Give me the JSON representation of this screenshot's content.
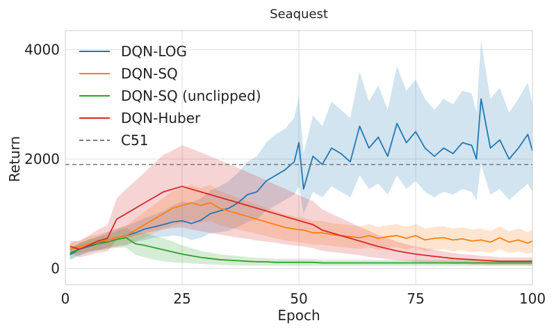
{
  "chart_data": {
    "type": "line",
    "title": "Seaquest",
    "xlabel": "Epoch",
    "ylabel": "Return",
    "xlim": [
      0,
      100
    ],
    "ylim": [
      -300,
      4350
    ],
    "xticks": [
      0,
      25,
      50,
      75,
      100
    ],
    "xtick_labels": [
      "0",
      "25",
      "50",
      "75",
      "100"
    ],
    "yticks": [
      0,
      2000,
      4000
    ],
    "ytick_labels": [
      "0",
      "2000",
      "4000"
    ],
    "grid": true,
    "legend_position": "top-left",
    "reference_line": {
      "name": "C51",
      "y": 1900,
      "color": "#808080",
      "style": "dashed"
    },
    "series": [
      {
        "name": "DQN-LOG",
        "color": "#1f77b4",
        "x": [
          1,
          3,
          5,
          7,
          9,
          11,
          13,
          15,
          17,
          19,
          21,
          23,
          25,
          27,
          29,
          31,
          33,
          35,
          37,
          39,
          41,
          43,
          45,
          47,
          49,
          50,
          51,
          53,
          55,
          57,
          59,
          61,
          63,
          65,
          67,
          69,
          71,
          73,
          75,
          77,
          79,
          81,
          83,
          85,
          87,
          88,
          89,
          91,
          93,
          95,
          97,
          99,
          100
        ],
        "values": [
          250,
          350,
          400,
          450,
          520,
          560,
          600,
          650,
          720,
          760,
          800,
          850,
          870,
          820,
          880,
          1000,
          1050,
          1100,
          1200,
          1350,
          1400,
          1600,
          1700,
          1800,
          1950,
          2300,
          1450,
          2050,
          1900,
          2200,
          2100,
          1950,
          2600,
          2200,
          2400,
          2050,
          2650,
          2300,
          2500,
          2200,
          2050,
          2200,
          2100,
          2300,
          2250,
          2000,
          3100,
          2200,
          2350,
          2000,
          2200,
          2450,
          2150
        ],
        "lower": [
          150,
          230,
          290,
          330,
          380,
          410,
          430,
          480,
          520,
          560,
          580,
          600,
          580,
          520,
          560,
          640,
          660,
          690,
          760,
          850,
          900,
          1050,
          1150,
          1250,
          1350,
          1500,
          1000,
          1400,
          1300,
          1500,
          1400,
          1300,
          1700,
          1450,
          1550,
          1350,
          1700,
          1450,
          1600,
          1400,
          1300,
          1400,
          1350,
          1450,
          1400,
          1250,
          1900,
          1350,
          1450,
          1250,
          1400,
          1550,
          1400
        ],
        "upper": [
          350,
          470,
          520,
          580,
          660,
          720,
          780,
          840,
          920,
          980,
          1050,
          1150,
          1220,
          1200,
          1280,
          1420,
          1500,
          1600,
          1750,
          1950,
          2050,
          2300,
          2450,
          2550,
          2750,
          3150,
          2100,
          2800,
          2600,
          3050,
          2900,
          2750,
          3600,
          3050,
          3350,
          2900,
          3700,
          3250,
          3450,
          3100,
          2900,
          3100,
          3000,
          3250,
          3200,
          2850,
          4150,
          3100,
          3300,
          2850,
          3100,
          3400,
          3000
        ]
      },
      {
        "name": "DQN-SQ",
        "color": "#ff7f0e",
        "x": [
          1,
          3,
          5,
          7,
          9,
          11,
          13,
          15,
          17,
          19,
          21,
          23,
          25,
          27,
          29,
          31,
          33,
          35,
          37,
          39,
          41,
          43,
          45,
          47,
          49,
          51,
          53,
          55,
          57,
          59,
          61,
          63,
          65,
          67,
          69,
          71,
          73,
          75,
          77,
          79,
          81,
          83,
          85,
          87,
          89,
          91,
          93,
          95,
          97,
          99,
          100
        ],
        "values": [
          350,
          400,
          450,
          480,
          520,
          560,
          600,
          700,
          800,
          900,
          1000,
          1100,
          1150,
          1200,
          1150,
          1200,
          1100,
          1050,
          1000,
          950,
          900,
          850,
          800,
          750,
          720,
          700,
          650,
          650,
          620,
          600,
          580,
          560,
          600,
          550,
          580,
          600,
          550,
          600,
          520,
          550,
          560,
          520,
          540,
          500,
          520,
          480,
          560,
          480,
          520,
          460,
          500
        ],
        "lower": [
          250,
          290,
          320,
          340,
          370,
          390,
          420,
          490,
          560,
          640,
          710,
          790,
          830,
          870,
          830,
          870,
          790,
          750,
          710,
          670,
          630,
          590,
          550,
          510,
          490,
          470,
          430,
          430,
          410,
          390,
          370,
          350,
          390,
          340,
          370,
          390,
          340,
          390,
          310,
          340,
          350,
          310,
          330,
          290,
          310,
          280,
          350,
          280,
          310,
          260,
          290
        ],
        "upper": [
          450,
          510,
          580,
          620,
          670,
          730,
          780,
          910,
          1040,
          1160,
          1290,
          1410,
          1470,
          1530,
          1470,
          1530,
          1410,
          1350,
          1290,
          1230,
          1170,
          1110,
          1050,
          990,
          950,
          930,
          870,
          870,
          830,
          810,
          790,
          770,
          810,
          760,
          790,
          810,
          760,
          810,
          730,
          760,
          770,
          730,
          750,
          710,
          730,
          680,
          770,
          680,
          730,
          660,
          710
        ]
      },
      {
        "name": "DQN-SQ (unclipped)",
        "color": "#2ca02c",
        "x": [
          1,
          3,
          5,
          7,
          9,
          11,
          13,
          15,
          17,
          19,
          21,
          23,
          25,
          27,
          29,
          31,
          33,
          35,
          37,
          39,
          41,
          43,
          45,
          47,
          49,
          51,
          53,
          55,
          57,
          59,
          61,
          63,
          65,
          67,
          69,
          71,
          73,
          75,
          77,
          79,
          81,
          83,
          85,
          87,
          89,
          91,
          93,
          95,
          97,
          99,
          100
        ],
        "values": [
          280,
          350,
          420,
          450,
          480,
          530,
          560,
          450,
          420,
          380,
          340,
          300,
          260,
          230,
          200,
          180,
          160,
          150,
          140,
          130,
          120,
          120,
          110,
          110,
          110,
          110,
          110,
          100,
          100,
          100,
          100,
          100,
          100,
          100,
          100,
          100,
          100,
          100,
          100,
          100,
          100,
          100,
          100,
          100,
          100,
          100,
          100,
          100,
          100,
          100,
          100
        ],
        "lower": [
          180,
          250,
          310,
          330,
          350,
          380,
          380,
          250,
          200,
          160,
          130,
          110,
          100,
          90,
          80,
          70,
          65,
          60,
          55,
          55,
          50,
          50,
          50,
          45,
          45,
          45,
          45,
          45,
          45,
          45,
          45,
          45,
          45,
          45,
          45,
          45,
          45,
          45,
          45,
          45,
          45,
          45,
          45,
          45,
          45,
          45,
          45,
          45,
          45,
          45,
          45
        ],
        "upper": [
          380,
          450,
          530,
          570,
          610,
          680,
          740,
          650,
          640,
          600,
          550,
          490,
          420,
          370,
          320,
          290,
          255,
          240,
          225,
          205,
          190,
          190,
          170,
          175,
          175,
          175,
          175,
          155,
          155,
          155,
          155,
          155,
          155,
          155,
          155,
          155,
          155,
          155,
          155,
          155,
          155,
          155,
          155,
          155,
          155,
          155,
          155,
          155,
          155,
          155,
          155
        ]
      },
      {
        "name": "DQN-Huber",
        "color": "#d62728",
        "x": [
          1,
          3,
          5,
          7,
          9,
          11,
          13,
          15,
          17,
          19,
          21,
          23,
          25,
          27,
          29,
          31,
          33,
          35,
          37,
          39,
          41,
          43,
          45,
          47,
          49,
          51,
          53,
          55,
          57,
          59,
          61,
          63,
          65,
          67,
          69,
          71,
          73,
          75,
          77,
          79,
          81,
          83,
          85,
          87,
          89,
          91,
          93,
          95,
          97,
          99,
          100
        ],
        "values": [
          400,
          350,
          420,
          500,
          550,
          900,
          1000,
          1100,
          1200,
          1300,
          1400,
          1450,
          1500,
          1450,
          1400,
          1350,
          1300,
          1250,
          1200,
          1150,
          1100,
          1050,
          1000,
          950,
          900,
          850,
          800,
          700,
          650,
          600,
          550,
          500,
          450,
          400,
          360,
          320,
          290,
          260,
          240,
          220,
          200,
          180,
          170,
          160,
          150,
          140,
          130,
          130,
          130,
          130,
          130
        ],
        "lower": [
          300,
          200,
          240,
          290,
          310,
          520,
          550,
          600,
          640,
          680,
          720,
          740,
          750,
          710,
          680,
          650,
          620,
          590,
          560,
          540,
          510,
          490,
          470,
          440,
          420,
          400,
          370,
          320,
          300,
          280,
          260,
          240,
          210,
          190,
          170,
          150,
          140,
          120,
          110,
          100,
          90,
          80,
          80,
          70,
          70,
          60,
          60,
          60,
          60,
          60,
          60
        ],
        "upper": [
          500,
          500,
          600,
          710,
          790,
          1280,
          1450,
          1600,
          1760,
          1920,
          2080,
          2160,
          2250,
          2190,
          2120,
          2050,
          1980,
          1910,
          1840,
          1760,
          1690,
          1610,
          1530,
          1460,
          1380,
          1300,
          1230,
          1080,
          1000,
          920,
          840,
          760,
          690,
          610,
          550,
          490,
          440,
          400,
          370,
          340,
          310,
          280,
          260,
          250,
          230,
          220,
          200,
          200,
          200,
          200,
          200
        ]
      }
    ]
  }
}
